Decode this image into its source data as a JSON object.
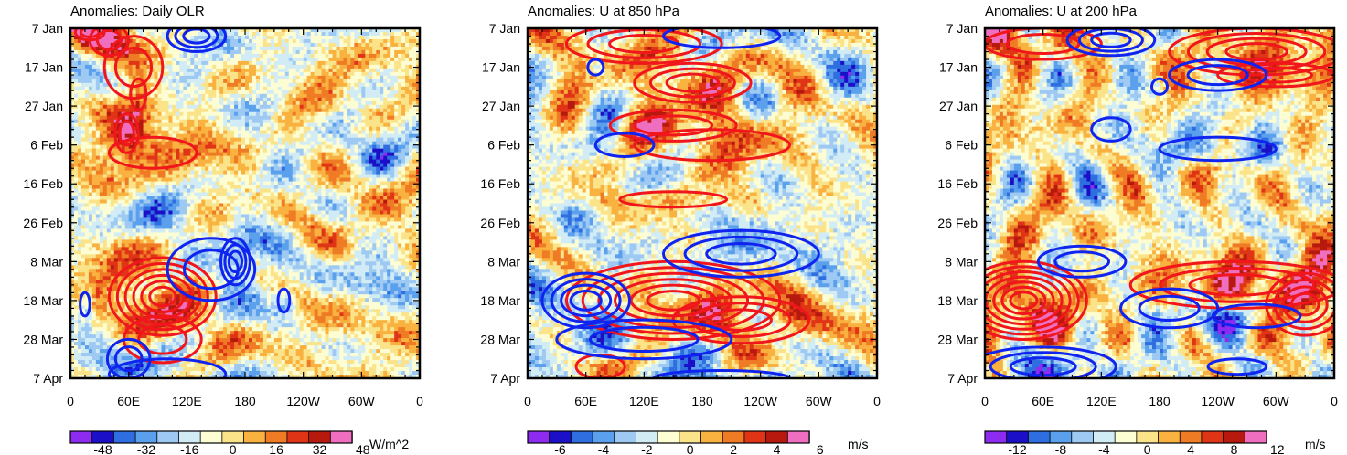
{
  "chart_data": [
    {
      "type": "heatmap",
      "title": "Anomalies: Daily OLR",
      "x_tick_labels": [
        "0",
        "60E",
        "120E",
        "180",
        "120W",
        "60W",
        "0"
      ],
      "y_tick_labels": [
        "7 Jan",
        "17 Jan",
        "27 Jan",
        "6 Feb",
        "16 Feb",
        "26 Feb",
        "8 Mar",
        "18 Mar",
        "28 Mar",
        "7 Apr"
      ],
      "xlim": [
        0,
        360
      ],
      "colorbar": {
        "labels": [
          "-48",
          "-32",
          "-16",
          "0",
          "16",
          "32",
          "48"
        ],
        "unit": "W/m^2",
        "vmin": -60,
        "vmax": 60
      },
      "seed": 3,
      "bias": 0.05,
      "contours": {
        "red": [
          {
            "lon": 20,
            "day": 1,
            "rlon": 15,
            "rday": 2,
            "rings": 2
          },
          {
            "lon": 40,
            "day": 3,
            "rlon": 20,
            "rday": 4,
            "rings": 2
          },
          {
            "lon": 65,
            "day": 10,
            "rlon": 30,
            "rday": 8,
            "rings": 2
          },
          {
            "lon": 70,
            "day": 17,
            "rlon": 8,
            "rday": 4,
            "rings": 1
          },
          {
            "lon": 58,
            "day": 27,
            "rlon": 12,
            "rday": 5,
            "rings": 2
          },
          {
            "lon": 85,
            "day": 32,
            "rlon": 45,
            "rday": 4,
            "rings": 1
          },
          {
            "lon": 95,
            "day": 69,
            "rlon": 55,
            "rday": 10,
            "rings": 6
          },
          {
            "lon": 95,
            "day": 80,
            "rlon": 40,
            "rday": 6,
            "rings": 2
          }
        ],
        "blue": [
          {
            "lon": 130,
            "day": 2,
            "rlon": 30,
            "rday": 4,
            "rings": 3
          },
          {
            "lon": 145,
            "day": 62,
            "rlon": 45,
            "rday": 8,
            "rings": 2
          },
          {
            "lon": 170,
            "day": 60,
            "rlon": 15,
            "rday": 6,
            "rings": 3
          },
          {
            "lon": 15,
            "day": 71,
            "rlon": 5,
            "rday": 3,
            "rings": 1
          },
          {
            "lon": 60,
            "day": 85,
            "rlon": 22,
            "rday": 5,
            "rings": 2
          },
          {
            "lon": 100,
            "day": 89,
            "rlon": 60,
            "rday": 4,
            "rings": 1
          },
          {
            "lon": 220,
            "day": 70,
            "rlon": 6,
            "rday": 3,
            "rings": 1
          }
        ]
      }
    },
    {
      "type": "heatmap",
      "title": "Anomalies: U at 850 hPa",
      "x_tick_labels": [
        "0",
        "60E",
        "120E",
        "180",
        "120W",
        "60W",
        "0"
      ],
      "y_tick_labels": [
        "7 Jan",
        "17 Jan",
        "27 Jan",
        "6 Feb",
        "16 Feb",
        "26 Feb",
        "8 Mar",
        "18 Mar",
        "28 Mar",
        "7 Apr"
      ],
      "xlim": [
        0,
        360
      ],
      "colorbar": {
        "labels": [
          "-6",
          "-4",
          "-2",
          "0",
          "2",
          "4",
          "6"
        ],
        "unit": "m/s",
        "vmin": -7.5,
        "vmax": 7.5
      },
      "seed": 11,
      "bias": -0.05,
      "contours": {
        "red": [
          {
            "lon": 120,
            "day": 4,
            "rlon": 80,
            "rday": 5,
            "rings": 3
          },
          {
            "lon": 170,
            "day": 14,
            "rlon": 60,
            "rday": 5,
            "rings": 3
          },
          {
            "lon": 150,
            "day": 25,
            "rlon": 65,
            "rday": 4,
            "rings": 2
          },
          {
            "lon": 190,
            "day": 30,
            "rlon": 80,
            "rday": 4,
            "rings": 1
          },
          {
            "lon": 150,
            "day": 44,
            "rlon": 55,
            "rday": 2,
            "rings": 1
          },
          {
            "lon": 150,
            "day": 70,
            "rlon": 110,
            "rday": 10,
            "rings": 6
          },
          {
            "lon": 220,
            "day": 75,
            "rlon": 70,
            "rday": 6,
            "rings": 3
          },
          {
            "lon": 75,
            "day": 87,
            "rlon": 25,
            "rday": 3,
            "rings": 1
          }
        ],
        "blue": [
          {
            "lon": 200,
            "day": 2,
            "rlon": 60,
            "rday": 3,
            "rings": 1
          },
          {
            "lon": 70,
            "day": 10,
            "rlon": 8,
            "rday": 2,
            "rings": 1
          },
          {
            "lon": 100,
            "day": 30,
            "rlon": 30,
            "rday": 3,
            "rings": 1
          },
          {
            "lon": 220,
            "day": 58,
            "rlon": 80,
            "rday": 6,
            "rings": 3
          },
          {
            "lon": 60,
            "day": 70,
            "rlon": 45,
            "rday": 7,
            "rings": 4
          },
          {
            "lon": 120,
            "day": 80,
            "rlon": 90,
            "rday": 5,
            "rings": 2
          },
          {
            "lon": 200,
            "day": 90,
            "rlon": 70,
            "rday": 2,
            "rings": 1
          }
        ]
      }
    },
    {
      "type": "heatmap",
      "title": "Anomalies: U at 200 hPa",
      "x_tick_labels": [
        "0",
        "60E",
        "120E",
        "180",
        "120W",
        "60W",
        "0"
      ],
      "y_tick_labels": [
        "7 Jan",
        "17 Jan",
        "27 Jan",
        "6 Feb",
        "16 Feb",
        "26 Feb",
        "8 Mar",
        "18 Mar",
        "28 Mar",
        "7 Apr"
      ],
      "xlim": [
        0,
        360
      ],
      "colorbar": {
        "labels": [
          "-12",
          "-8",
          "-4",
          "0",
          "4",
          "8",
          "12"
        ],
        "unit": "m/s",
        "vmin": -15,
        "vmax": 15
      },
      "seed": 23,
      "bias": 0.1,
      "contours": {
        "red": [
          {
            "lon": 60,
            "day": 4,
            "rlon": 60,
            "rday": 4,
            "rings": 2
          },
          {
            "lon": 280,
            "day": 6,
            "rlon": 90,
            "rday": 6,
            "rings": 4
          },
          {
            "lon": 300,
            "day": 12,
            "rlon": 60,
            "rday": 3,
            "rings": 2
          },
          {
            "lon": 40,
            "day": 70,
            "rlon": 65,
            "rday": 10,
            "rings": 7
          },
          {
            "lon": 260,
            "day": 66,
            "rlon": 110,
            "rday": 6,
            "rings": 3
          },
          {
            "lon": 330,
            "day": 71,
            "rlon": 40,
            "rday": 8,
            "rings": 4
          }
        ],
        "blue": [
          {
            "lon": 130,
            "day": 3,
            "rlon": 45,
            "rday": 4,
            "rings": 3
          },
          {
            "lon": 240,
            "day": 12,
            "rlon": 50,
            "rday": 4,
            "rings": 2
          },
          {
            "lon": 180,
            "day": 15,
            "rlon": 8,
            "rday": 2,
            "rings": 1
          },
          {
            "lon": 130,
            "day": 26,
            "rlon": 20,
            "rday": 3,
            "rings": 1
          },
          {
            "lon": 240,
            "day": 31,
            "rlon": 60,
            "rday": 3,
            "rings": 1
          },
          {
            "lon": 100,
            "day": 60,
            "rlon": 45,
            "rday": 4,
            "rings": 2
          },
          {
            "lon": 190,
            "day": 72,
            "rlon": 50,
            "rday": 5,
            "rings": 2
          },
          {
            "lon": 280,
            "day": 74,
            "rlon": 45,
            "rday": 3,
            "rings": 1
          },
          {
            "lon": 60,
            "day": 87,
            "rlon": 75,
            "rday": 5,
            "rings": 3
          },
          {
            "lon": 260,
            "day": 87,
            "rlon": 30,
            "rday": 2,
            "rings": 1
          }
        ]
      }
    }
  ],
  "palette": [
    "#8d2cf0",
    "#1b0fc8",
    "#2f6ee0",
    "#5aa0ec",
    "#9ec9f2",
    "#d2ecf6",
    "#fdfdd4",
    "#fbe38a",
    "#f9b240",
    "#ef7b25",
    "#e03416",
    "#b7190e",
    "#f06ec0"
  ],
  "contour_colors": {
    "positive": "#f0161c",
    "negative": "#1024f0"
  }
}
